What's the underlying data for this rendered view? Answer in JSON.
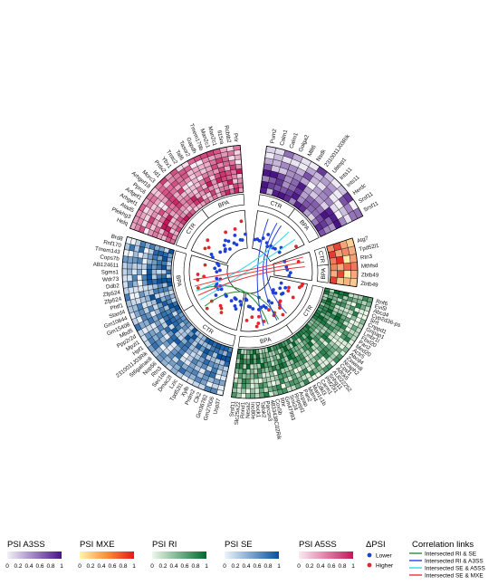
{
  "colors": {
    "A3SS": [
      "#f3f0f8",
      "#4a1486"
    ],
    "MXE": [
      "#fff5b0",
      "#e31a1c"
    ],
    "RI": [
      "#eef8ea",
      "#00692d"
    ],
    "SE": [
      "#eef4fb",
      "#08519c"
    ],
    "A5SS": [
      "#fbeaf3",
      "#c2185b"
    ],
    "lower": "#1f3fd6",
    "higher": "#e3262e",
    "link_RI_SE": "#2e8b3a",
    "link_RI_A3SS": "#2343e0",
    "link_SE_A5SS": "#38d6e6",
    "link_SE_MXE": "#e8343a"
  },
  "sectors": [
    {
      "key": "A5SS",
      "groups": [
        "CTR",
        "BPA"
      ],
      "genes": [
        "Helq",
        "Plekhg3",
        "Atad5",
        "Arhgef1",
        "Arfgef1",
        "Pprc6",
        "Arhgef18",
        "Morc3",
        "Id1",
        "Prdx2",
        "Ybx1",
        "Tmtc2",
        "Taf6",
        "Tasor2",
        "Gapdh",
        "Tmem179b",
        "Man2c1",
        "Man2c1",
        "Il15ra",
        "Rcbtb2",
        "Prlr"
      ]
    },
    {
      "key": "A3SS",
      "groups": [
        "CTR",
        "BPA"
      ],
      "genes": [
        "Pum2",
        "Calm1",
        "Calm1",
        "Golga2",
        "Mllt6",
        "Nsdk",
        "2310011J03Rik",
        "Ubtop1",
        "Ints11",
        "Ints11",
        "Herdc",
        "Srsf11",
        "Srsf11"
      ]
    },
    {
      "key": "MXE",
      "groups": [
        "CTR",
        "BPA"
      ],
      "genes": [
        "Atg7",
        "Tpd52l1",
        "Rtn3",
        "Mthfsd",
        "Zbtb49",
        "Zbtb49"
      ]
    },
    {
      "key": "RI",
      "groups": [
        "CTR",
        "BPA"
      ],
      "genes": [
        "Rnf6",
        "Evi5l",
        "Abcd4",
        "Cyp2d36-ps",
        "Srrt",
        "Cnppd1",
        "Gripap1",
        "Lmbr1l",
        "Fbxl20",
        "Pan2",
        "Med20",
        "Actr5",
        "Abcd4",
        "Zswim8",
        "Ncaph2",
        "Cpsf1",
        "Adck5",
        "AU022252",
        "Snhg11",
        "Phf20l1",
        "Carm1",
        "Cdkl3",
        "Man1c1b",
        "Mdm4",
        "Pan2",
        "Acpap",
        "Rnpepl1",
        "Snx24",
        "Gm47993",
        "Rhr",
        "Cox5b",
        "4833438C02Rik",
        "Parcsn3",
        "Tafok2",
        "Dock1",
        "Ino80e",
        "Nesa2",
        "Rnnd1",
        "Slc25a22",
        "Srsf11"
      ]
    },
    {
      "key": "SE",
      "groups": [
        "CTR",
        "BPA"
      ],
      "genes": [
        "Usp37",
        "Gm27006",
        "Gm36782",
        "Clk2",
        "Prdm2",
        "Xylb",
        "Tpd52l1",
        "Lzic",
        "Dmac2l",
        "Sec16b",
        "Rtn3",
        "Nop56",
        "St6galnac6",
        "2310011J03Rik",
        "Hpf1",
        "Mpzl1",
        "Ppp2r2d",
        "Mbd5",
        "Gm15408",
        "Gm10644",
        "Stard4",
        "Phtf1",
        "Zfp524",
        "Zfp524",
        "Ddb2",
        "Wdr73",
        "Sgms1",
        "AB124611",
        "Cops7b",
        "Tmem143",
        "Rnf170",
        "Brd8"
      ]
    }
  ],
  "legend": {
    "scale_ticks": [
      "0",
      "0.2",
      "0.4",
      "0.6",
      "0.8",
      "1"
    ],
    "a3ss_title": "PSI A3SS",
    "mxe_title": "PSI MXE",
    "ri_title": "PSI RI",
    "se_title": "PSI SE",
    "a5ss_title": "PSI A5SS",
    "dpsi_title": "ΔPSI",
    "lower": "Lower",
    "higher": "Higher",
    "links_title": "Correlation links",
    "link_ri_se": "Intersected RI & SE",
    "link_ri_a3ss": "Intersected RI & A3SS",
    "link_se_a5ss": "Intersected SE & A5SS",
    "link_se_mxe": "Intersected SE & MXE"
  }
}
